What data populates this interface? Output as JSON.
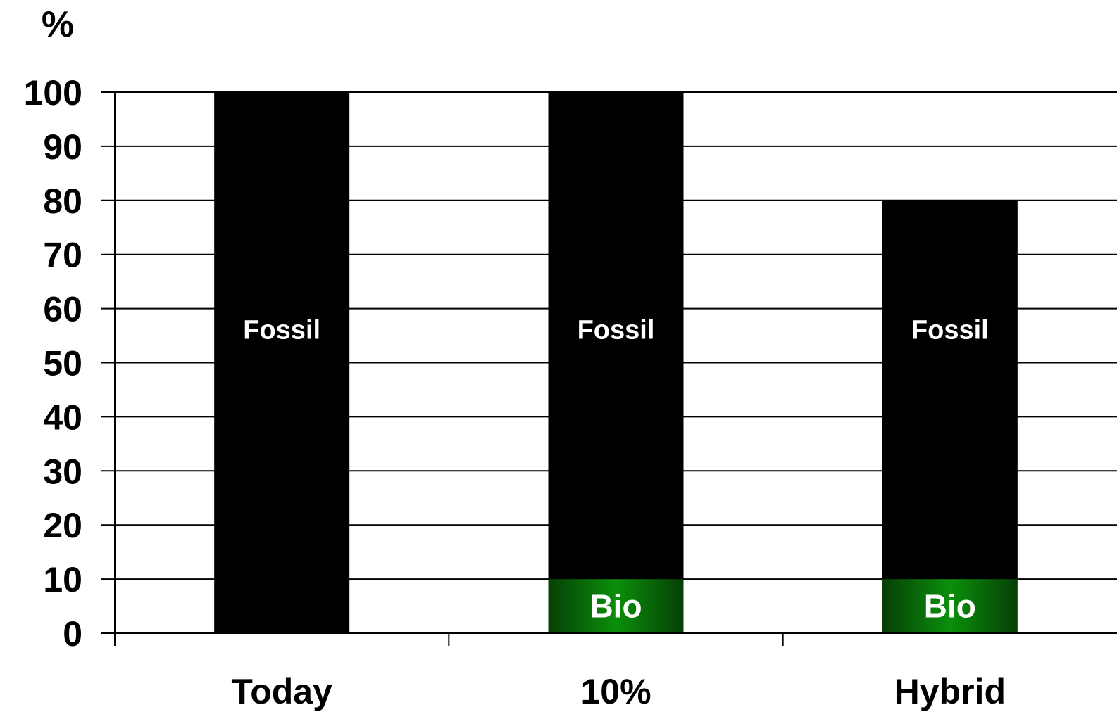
{
  "chart_data": {
    "type": "bar",
    "stacked": true,
    "title": "",
    "xlabel": "",
    "ylabel": "%",
    "ylim": [
      0,
      100
    ],
    "yticks": [
      0,
      10,
      20,
      30,
      40,
      50,
      60,
      70,
      80,
      90,
      100
    ],
    "grid": true,
    "legend": "none",
    "categories": [
      "Today",
      "10%",
      "Hybrid"
    ],
    "series": [
      {
        "key": "bio",
        "values": [
          0,
          10,
          10
        ],
        "color": "#0b8a0b",
        "segment_labels": [
          "",
          "Bio",
          "Bio"
        ]
      },
      {
        "key": "fossil",
        "values": [
          100,
          90,
          70
        ],
        "color": "#000000",
        "segment_labels": [
          "Fossil",
          "Fossil",
          "Fossil"
        ]
      }
    ]
  }
}
